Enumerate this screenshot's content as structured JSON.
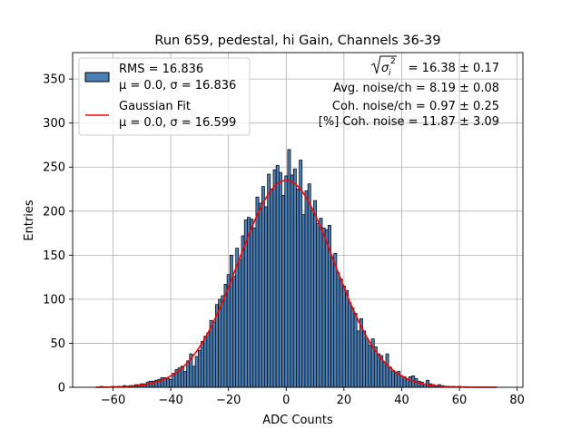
{
  "chart_data": {
    "type": "bar",
    "title": "Run 659, pedestal, hi Gain, Channels 36-39",
    "xlabel": "ADC Counts",
    "ylabel": "Entries",
    "xlim": [
      -74,
      82
    ],
    "ylim": [
      0,
      380
    ],
    "x_ticks": [
      -60,
      -40,
      -20,
      0,
      20,
      40,
      60,
      80
    ],
    "x_tick_labels": [
      "−60",
      "−40",
      "−20",
      "0",
      "20",
      "40",
      "60",
      "80"
    ],
    "y_ticks": [
      0,
      50,
      100,
      150,
      200,
      250,
      300,
      350
    ],
    "y_tick_labels": [
      "0",
      "50",
      "100",
      "150",
      "200",
      "250",
      "300",
      "350"
    ],
    "grid": true,
    "bin_width": 1,
    "bins": [
      {
        "x": -64,
        "y": 1
      },
      {
        "x": -60,
        "y": 1
      },
      {
        "x": -58,
        "y": 1
      },
      {
        "x": -56,
        "y": 2
      },
      {
        "x": -54,
        "y": 2
      },
      {
        "x": -53,
        "y": 2
      },
      {
        "x": -52,
        "y": 3
      },
      {
        "x": -51,
        "y": 3
      },
      {
        "x": -50,
        "y": 4
      },
      {
        "x": -49,
        "y": 4
      },
      {
        "x": -48,
        "y": 6
      },
      {
        "x": -47,
        "y": 7
      },
      {
        "x": -46,
        "y": 7
      },
      {
        "x": -45,
        "y": 8
      },
      {
        "x": -44,
        "y": 9
      },
      {
        "x": -43,
        "y": 11
      },
      {
        "x": -42,
        "y": 11
      },
      {
        "x": -41,
        "y": 10
      },
      {
        "x": -40,
        "y": 9
      },
      {
        "x": -39,
        "y": 16
      },
      {
        "x": -38,
        "y": 20
      },
      {
        "x": -37,
        "y": 22
      },
      {
        "x": -36,
        "y": 24
      },
      {
        "x": -35,
        "y": 18
      },
      {
        "x": -34,
        "y": 30
      },
      {
        "x": -33,
        "y": 38
      },
      {
        "x": -32,
        "y": 24
      },
      {
        "x": -31,
        "y": 35
      },
      {
        "x": -30,
        "y": 42
      },
      {
        "x": -29,
        "y": 52
      },
      {
        "x": -28,
        "y": 58
      },
      {
        "x": -27,
        "y": 62
      },
      {
        "x": -26,
        "y": 76
      },
      {
        "x": -25,
        "y": 74
      },
      {
        "x": -24,
        "y": 94
      },
      {
        "x": -23,
        "y": 100
      },
      {
        "x": -22,
        "y": 104
      },
      {
        "x": -21,
        "y": 117
      },
      {
        "x": -20,
        "y": 128
      },
      {
        "x": -19,
        "y": 150
      },
      {
        "x": -18,
        "y": 126
      },
      {
        "x": -17,
        "y": 158
      },
      {
        "x": -16,
        "y": 145
      },
      {
        "x": -15,
        "y": 172
      },
      {
        "x": -14,
        "y": 190
      },
      {
        "x": -13,
        "y": 193
      },
      {
        "x": -12,
        "y": 191
      },
      {
        "x": -11,
        "y": 181
      },
      {
        "x": -10,
        "y": 216
      },
      {
        "x": -9,
        "y": 209
      },
      {
        "x": -8,
        "y": 228
      },
      {
        "x": -7,
        "y": 205
      },
      {
        "x": -6,
        "y": 242
      },
      {
        "x": -5,
        "y": 225
      },
      {
        "x": -4,
        "y": 247
      },
      {
        "x": -3,
        "y": 252
      },
      {
        "x": -2,
        "y": 244
      },
      {
        "x": -1,
        "y": 218
      },
      {
        "x": 0,
        "y": 240
      },
      {
        "x": 1,
        "y": 270
      },
      {
        "x": 2,
        "y": 241
      },
      {
        "x": 3,
        "y": 248
      },
      {
        "x": 4,
        "y": 225
      },
      {
        "x": 5,
        "y": 258
      },
      {
        "x": 6,
        "y": 196
      },
      {
        "x": 7,
        "y": 223
      },
      {
        "x": 8,
        "y": 231
      },
      {
        "x": 9,
        "y": 201
      },
      {
        "x": 10,
        "y": 212
      },
      {
        "x": 11,
        "y": 186
      },
      {
        "x": 12,
        "y": 192
      },
      {
        "x": 13,
        "y": 181
      },
      {
        "x": 14,
        "y": 179
      },
      {
        "x": 15,
        "y": 184
      },
      {
        "x": 16,
        "y": 148
      },
      {
        "x": 17,
        "y": 152
      },
      {
        "x": 18,
        "y": 130
      },
      {
        "x": 19,
        "y": 123
      },
      {
        "x": 20,
        "y": 115
      },
      {
        "x": 21,
        "y": 110
      },
      {
        "x": 22,
        "y": 96
      },
      {
        "x": 23,
        "y": 90
      },
      {
        "x": 24,
        "y": 84
      },
      {
        "x": 25,
        "y": 64
      },
      {
        "x": 26,
        "y": 78
      },
      {
        "x": 27,
        "y": 64
      },
      {
        "x": 28,
        "y": 55
      },
      {
        "x": 29,
        "y": 48
      },
      {
        "x": 30,
        "y": 55
      },
      {
        "x": 31,
        "y": 46
      },
      {
        "x": 32,
        "y": 38
      },
      {
        "x": 33,
        "y": 36
      },
      {
        "x": 34,
        "y": 28
      },
      {
        "x": 35,
        "y": 38
      },
      {
        "x": 36,
        "y": 23
      },
      {
        "x": 37,
        "y": 18
      },
      {
        "x": 38,
        "y": 16
      },
      {
        "x": 39,
        "y": 18
      },
      {
        "x": 40,
        "y": 13
      },
      {
        "x": 41,
        "y": 12
      },
      {
        "x": 42,
        "y": 9
      },
      {
        "x": 43,
        "y": 12
      },
      {
        "x": 44,
        "y": 13
      },
      {
        "x": 45,
        "y": 10
      },
      {
        "x": 46,
        "y": 7
      },
      {
        "x": 47,
        "y": 6
      },
      {
        "x": 48,
        "y": 4
      },
      {
        "x": 49,
        "y": 8
      },
      {
        "x": 50,
        "y": 4
      },
      {
        "x": 51,
        "y": 3
      },
      {
        "x": 52,
        "y": 2
      },
      {
        "x": 53,
        "y": 3
      },
      {
        "x": 54,
        "y": 2
      },
      {
        "x": 55,
        "y": 1
      },
      {
        "x": 56,
        "y": 1
      },
      {
        "x": 58,
        "y": 1
      },
      {
        "x": 60,
        "y": 1
      }
    ],
    "fit": {
      "mu": 0.0,
      "sigma": 16.599,
      "amplitude": 235,
      "x_range": [
        -66,
        73
      ]
    },
    "series": [
      {
        "name": "RMS = 16.836",
        "name_line2": "μ = 0.0, σ = 16.836",
        "type": "bar",
        "color": "#4a7fb5",
        "edgecolor": "#000000"
      },
      {
        "name": "Gaussian Fit",
        "name_line2": "μ = 0.0, σ = 16.599",
        "type": "line",
        "color": "#ff0000"
      }
    ],
    "legend_position": "upper-left",
    "annotations": {
      "sigma_label_prefix": "√σ",
      "sigma_sub": "i",
      "sigma_sup": "2",
      "sigma_value": " = 16.38 ± 0.17",
      "avg_noise": "Avg. noise/ch = 8.19 ± 0.08",
      "coh_noise": "Coh. noise/ch = 0.97 ± 0.25",
      "coh_noise_pct": "[%] Coh. noise = 11.87 ± 3.09"
    },
    "colors": {
      "bar": "#4a7fb5",
      "fit": "#ff0000",
      "grid": "#b0b0b0"
    }
  }
}
